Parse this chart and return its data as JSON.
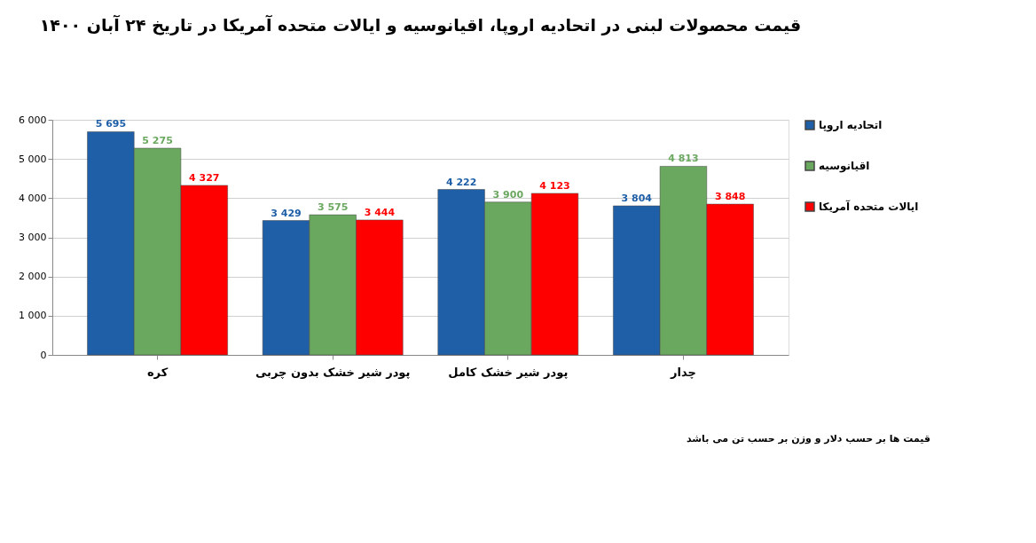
{
  "chart_data": {
    "type": "bar",
    "title": "قیمت محصولات لبنی در اتحادیه اروپا، اقیانوسیه و ایالات متحده آمریکا در تاریخ ۲۴ آبان ۱۴۰۰",
    "categories": [
      "کره",
      "پودر شیر خشک بدون چربی",
      "پودر شیر خشک کامل",
      "چدار"
    ],
    "series": [
      {
        "name": "اتحادیه اروپا",
        "color": "#1f5fa8",
        "values": [
          5695,
          3429,
          4222,
          3804
        ],
        "value_labels": [
          "5 695",
          "3 429",
          "4 222",
          "3 804"
        ]
      },
      {
        "name": "اقیانوسیه",
        "color": "#6aa85f",
        "values": [
          5275,
          3575,
          3900,
          4813
        ],
        "value_labels": [
          "5 275",
          "3 575",
          "3 900",
          "4 813"
        ]
      },
      {
        "name": "ایالات متحده آمریکا",
        "color": "#ff0000",
        "values": [
          4327,
          3444,
          4123,
          3848
        ],
        "value_labels": [
          "4 327",
          "3 444",
          "4 123",
          "3 848"
        ]
      }
    ],
    "ylim": [
      0,
      6000
    ],
    "yticks": [
      {
        "value": 0,
        "label": "0"
      },
      {
        "value": 1000,
        "label": "1 000"
      },
      {
        "value": 2000,
        "label": "2 000"
      },
      {
        "value": 3000,
        "label": "3 000"
      },
      {
        "value": 4000,
        "label": "4 000"
      },
      {
        "value": 5000,
        "label": "5 000"
      },
      {
        "value": 6000,
        "label": "6 000"
      }
    ],
    "grid": "y",
    "legend": "right",
    "annotations": [
      "قیمت ها بر حسب دلار و وزن بر حسب تن می باشد"
    ]
  }
}
